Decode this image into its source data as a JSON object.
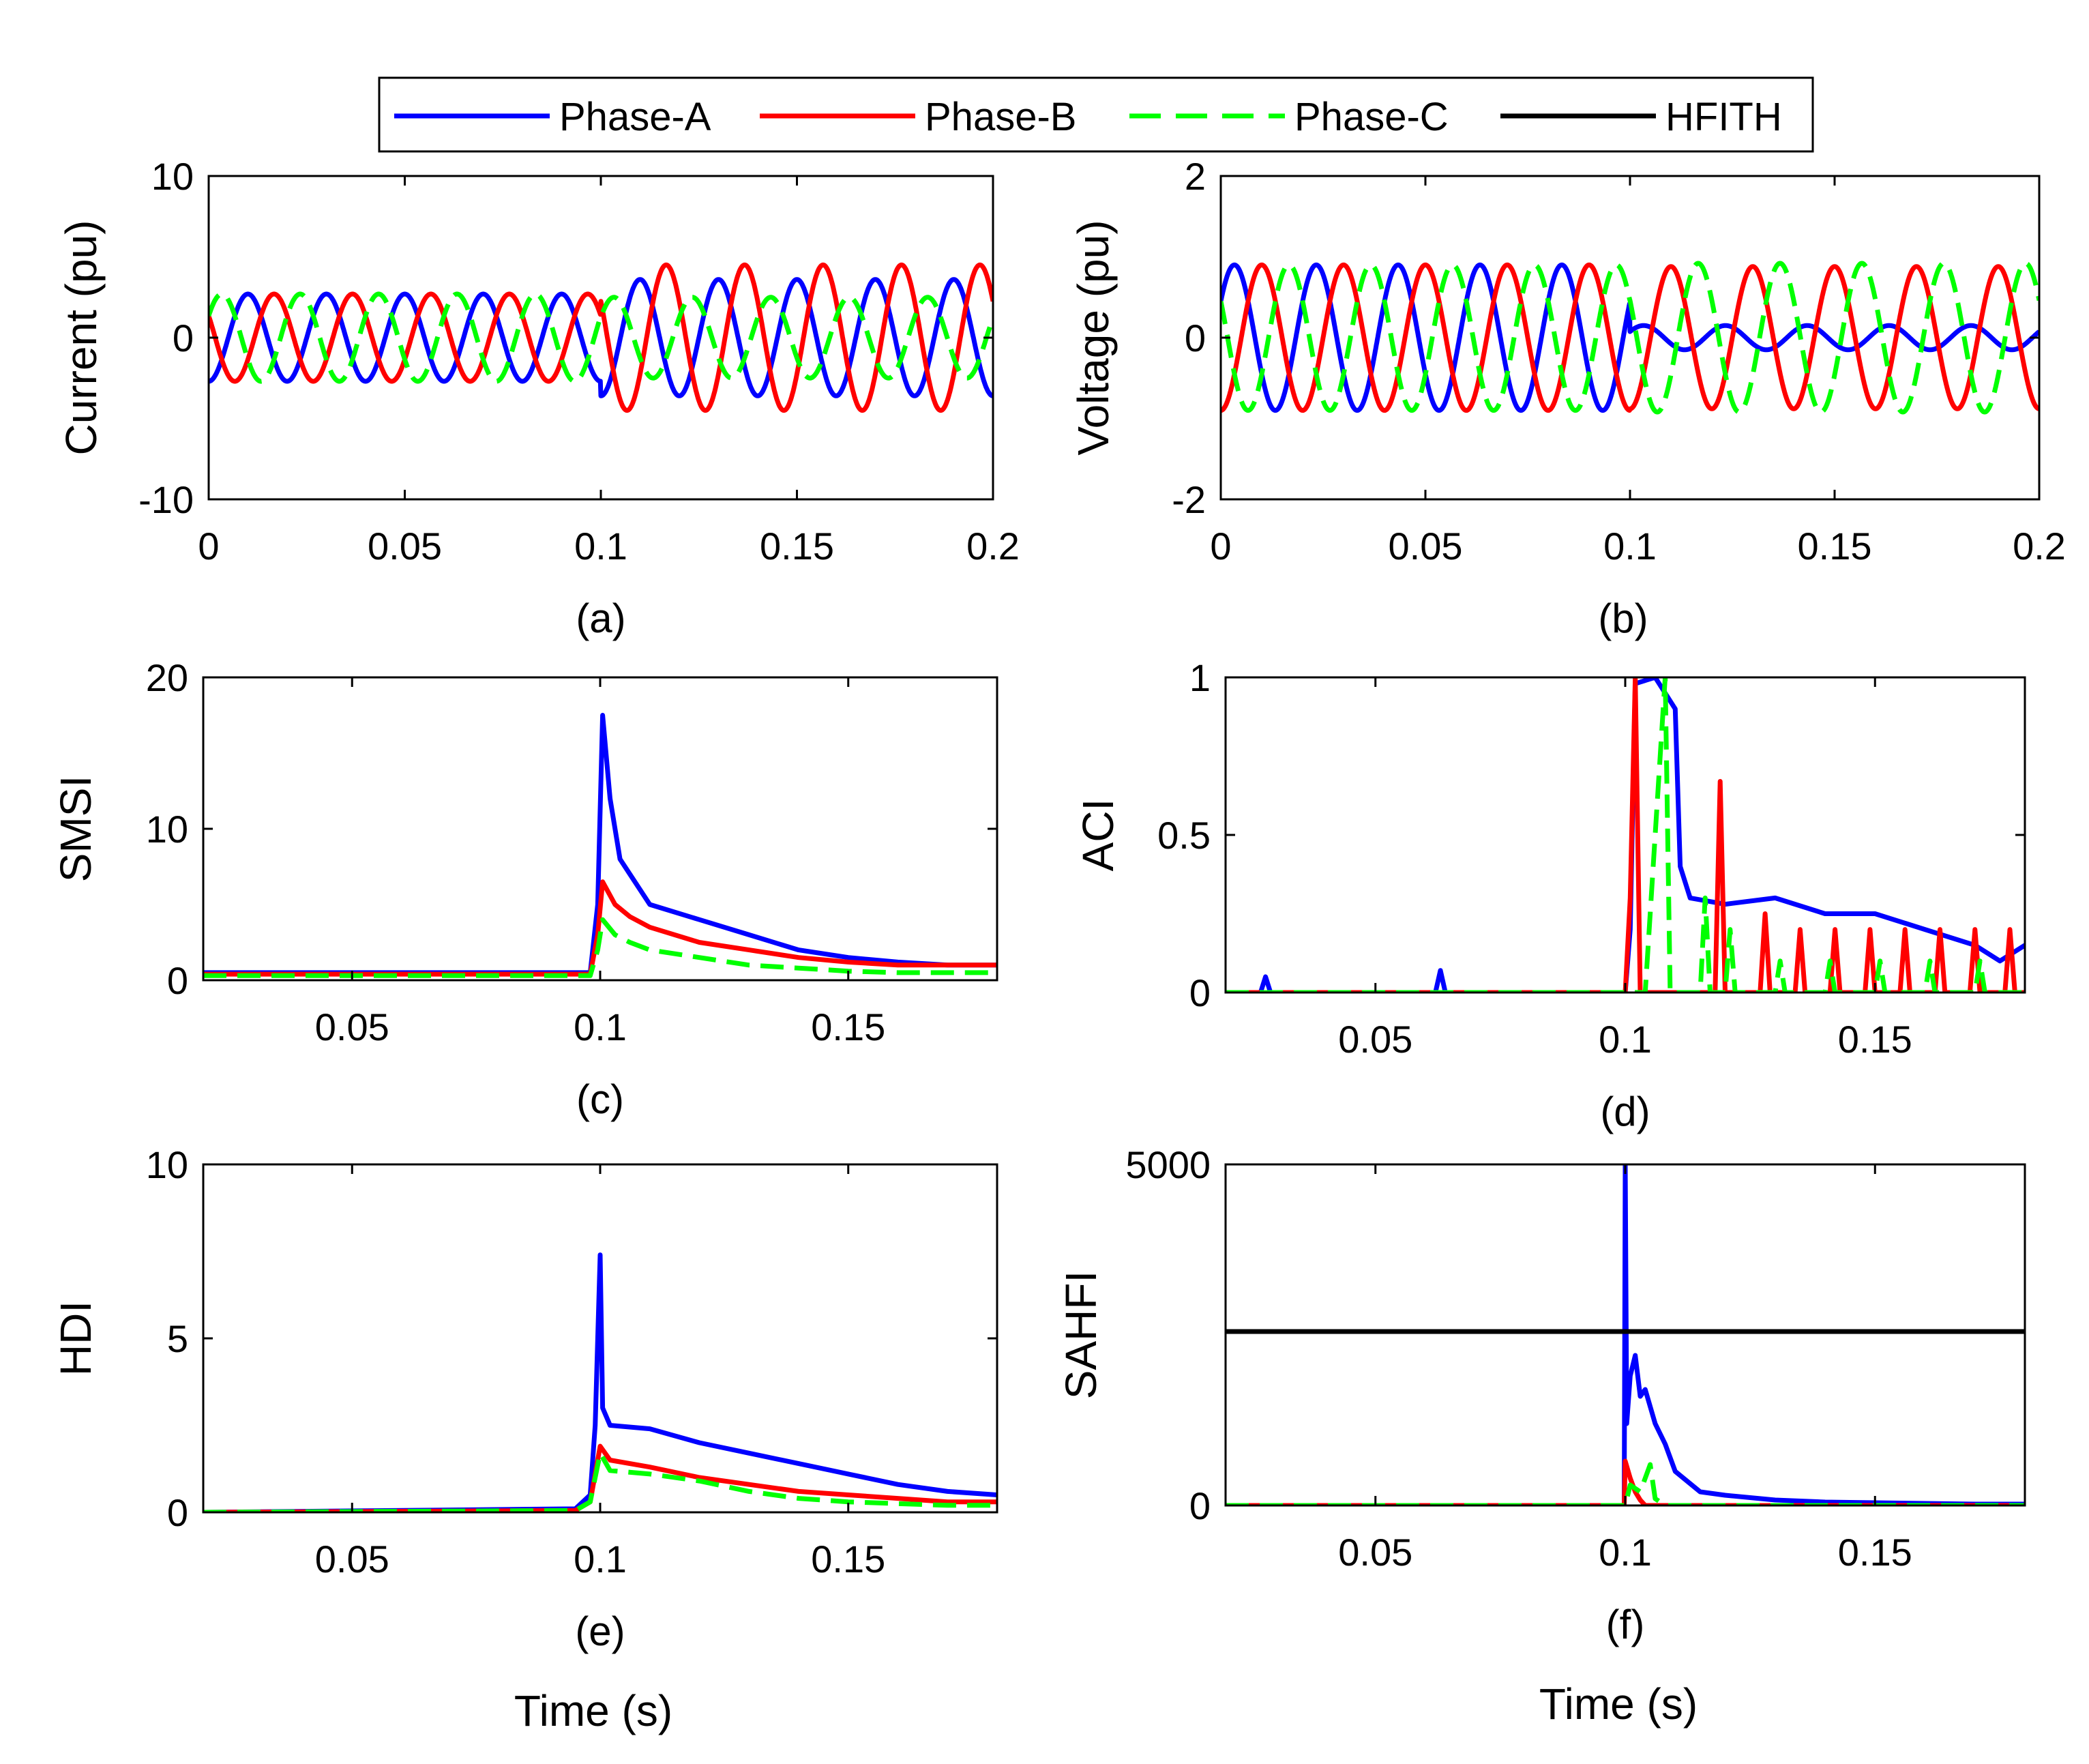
{
  "legend": {
    "entries": [
      {
        "label": "Phase-A",
        "color": "#0000ff",
        "dash": "solid"
      },
      {
        "label": "Phase-B",
        "color": "#ff0000",
        "dash": "solid"
      },
      {
        "label": "Phase-C",
        "color": "#00ff00",
        "dash": "dashed"
      },
      {
        "label": "HFITH",
        "color": "#000000",
        "dash": "solid"
      }
    ]
  },
  "chart_data": [
    {
      "id": "a",
      "type": "line",
      "caption": "(a)",
      "ylabel": "Current (pu)",
      "xlabel": "",
      "xlim": [
        0,
        0.2
      ],
      "ylim": [
        -10,
        10
      ],
      "xticks": [
        "0",
        "0.05",
        "0.1",
        "0.15",
        "0.2"
      ],
      "yticks": [
        "-10",
        "0",
        "10"
      ],
      "signal": {
        "fault_time": 0.1,
        "frequency_hz": 50,
        "series": [
          {
            "phase": "Phase-A",
            "pre_amplitude": 2.7,
            "post_amplitude": 3.6,
            "phase_deg": -90
          },
          {
            "phase": "Phase-B",
            "pre_amplitude": 2.7,
            "post_amplitude": 4.5,
            "phase_deg": 150
          },
          {
            "phase": "Phase-C",
            "pre_amplitude": 2.7,
            "post_amplitude": 2.5,
            "phase_deg": 30
          }
        ]
      }
    },
    {
      "id": "b",
      "type": "line",
      "caption": "(b)",
      "ylabel": "Voltage (pu)",
      "xlabel": "",
      "xlim": [
        0,
        0.2
      ],
      "ylim": [
        -2,
        2
      ],
      "xticks": [
        "0",
        "0.05",
        "0.1",
        "0.15",
        "0.2"
      ],
      "yticks": [
        "-2",
        "0",
        "2"
      ],
      "signal": {
        "fault_time": 0.1,
        "frequency_hz": 50,
        "series": [
          {
            "phase": "Phase-A",
            "pre_amplitude": 0.9,
            "post_amplitude": 0.15,
            "phase_deg": 30
          },
          {
            "phase": "Phase-B",
            "pre_amplitude": 0.9,
            "post_amplitude": 0.88,
            "phase_deg": -90
          },
          {
            "phase": "Phase-C",
            "pre_amplitude": 0.9,
            "post_amplitude": 0.92,
            "phase_deg": 150
          }
        ]
      }
    },
    {
      "id": "c",
      "type": "line",
      "caption": "(c)",
      "ylabel": "SMSI",
      "xlabel": "",
      "xlim": [
        0.02,
        0.18
      ],
      "ylim": [
        0,
        20
      ],
      "xticks": [
        "0.05",
        "0.1",
        "0.15"
      ],
      "yticks": [
        "0",
        "10",
        "20"
      ],
      "series": [
        {
          "phase": "Phase-A",
          "x": [
            0.02,
            0.098,
            0.0995,
            0.1005,
            0.102,
            0.104,
            0.106,
            0.11,
            0.12,
            0.13,
            0.14,
            0.15,
            0.16,
            0.17,
            0.18
          ],
          "y": [
            0.5,
            0.5,
            5,
            17.5,
            12,
            8,
            7,
            5,
            4,
            3,
            2,
            1.5,
            1.2,
            1,
            1
          ]
        },
        {
          "phase": "Phase-B",
          "x": [
            0.02,
            0.098,
            0.0995,
            0.1005,
            0.103,
            0.106,
            0.11,
            0.12,
            0.13,
            0.14,
            0.15,
            0.16,
            0.17,
            0.18
          ],
          "y": [
            0.4,
            0.4,
            3,
            6.5,
            5,
            4.2,
            3.5,
            2.5,
            2,
            1.5,
            1.2,
            1,
            1,
            1
          ]
        },
        {
          "phase": "Phase-C",
          "x": [
            0.02,
            0.098,
            0.0995,
            0.1005,
            0.103,
            0.106,
            0.11,
            0.12,
            0.13,
            0.14,
            0.15,
            0.16,
            0.17,
            0.18
          ],
          "y": [
            0.3,
            0.3,
            2,
            4,
            3,
            2.5,
            2,
            1.5,
            1,
            0.8,
            0.6,
            0.5,
            0.5,
            0.5
          ]
        }
      ]
    },
    {
      "id": "d",
      "type": "line",
      "caption": "(d)",
      "ylabel": "ACI",
      "xlabel": "",
      "xlim": [
        0.02,
        0.18
      ],
      "ylim": [
        0,
        1
      ],
      "xticks": [
        "0.05",
        "0.1",
        "0.15"
      ],
      "yticks": [
        "0",
        "0.5",
        "1"
      ],
      "series": [
        {
          "phase": "Phase-A",
          "x": [
            0.02,
            0.027,
            0.028,
            0.029,
            0.062,
            0.063,
            0.064,
            0.1,
            0.101,
            0.102,
            0.106,
            0.108,
            0.11,
            0.111,
            0.113,
            0.12,
            0.13,
            0.14,
            0.15,
            0.16,
            0.17,
            0.175,
            0.18
          ],
          "y": [
            0,
            0,
            0.05,
            0,
            0,
            0.07,
            0,
            0,
            0.2,
            0.98,
            1,
            0.95,
            0.9,
            0.4,
            0.3,
            0.28,
            0.3,
            0.25,
            0.25,
            0.2,
            0.15,
            0.1,
            0.15
          ]
        },
        {
          "phase": "Phase-B",
          "x": [
            0.02,
            0.1,
            0.101,
            0.102,
            0.103,
            0.118,
            0.119,
            0.12,
            0.127,
            0.128,
            0.129,
            0.134,
            0.135,
            0.136,
            0.141,
            0.142,
            0.143,
            0.148,
            0.149,
            0.15,
            0.155,
            0.156,
            0.157,
            0.162,
            0.163,
            0.164,
            0.169,
            0.17,
            0.171,
            0.176,
            0.177,
            0.178,
            0.18
          ],
          "y": [
            0,
            0,
            0.3,
            1,
            0,
            0,
            0.67,
            0,
            0,
            0.25,
            0,
            0,
            0.2,
            0,
            0,
            0.2,
            0,
            0,
            0.2,
            0,
            0,
            0.2,
            0,
            0,
            0.2,
            0,
            0,
            0.2,
            0,
            0,
            0.2,
            0,
            0
          ]
        },
        {
          "phase": "Phase-C",
          "x": [
            0.02,
            0.104,
            0.106,
            0.108,
            0.109,
            0.115,
            0.116,
            0.117,
            0.12,
            0.121,
            0.122,
            0.13,
            0.131,
            0.132,
            0.14,
            0.141,
            0.142,
            0.15,
            0.151,
            0.152,
            0.16,
            0.161,
            0.162,
            0.17,
            0.171,
            0.172,
            0.18
          ],
          "y": [
            0,
            0,
            0.5,
            1,
            0,
            0,
            0.3,
            0,
            0,
            0.2,
            0,
            0,
            0.1,
            0,
            0,
            0.1,
            0,
            0,
            0.1,
            0,
            0,
            0.1,
            0,
            0,
            0.1,
            0,
            0
          ]
        }
      ]
    },
    {
      "id": "e",
      "type": "line",
      "caption": "(e)",
      "ylabel": "HDI",
      "xlabel": "Time (s)",
      "xlim": [
        0.02,
        0.18
      ],
      "ylim": [
        0,
        10
      ],
      "xticks": [
        "0.05",
        "0.1",
        "0.15"
      ],
      "yticks": [
        "0",
        "5",
        "10"
      ],
      "series": [
        {
          "phase": "Phase-A",
          "x": [
            0.02,
            0.095,
            0.098,
            0.099,
            0.1,
            0.1005,
            0.102,
            0.11,
            0.12,
            0.13,
            0.14,
            0.15,
            0.16,
            0.17,
            0.18
          ],
          "y": [
            0,
            0.1,
            0.5,
            2.5,
            7.4,
            3,
            2.5,
            2.4,
            2,
            1.7,
            1.4,
            1.1,
            0.8,
            0.6,
            0.5
          ]
        },
        {
          "phase": "Phase-B",
          "x": [
            0.02,
            0.095,
            0.098,
            0.1,
            0.102,
            0.11,
            0.12,
            0.13,
            0.14,
            0.15,
            0.16,
            0.17,
            0.18
          ],
          "y": [
            0,
            0.05,
            0.3,
            1.9,
            1.5,
            1.3,
            1.0,
            0.8,
            0.6,
            0.5,
            0.4,
            0.3,
            0.3
          ]
        },
        {
          "phase": "Phase-C",
          "x": [
            0.02,
            0.095,
            0.098,
            0.1,
            0.102,
            0.11,
            0.12,
            0.13,
            0.14,
            0.15,
            0.16,
            0.17,
            0.18
          ],
          "y": [
            0,
            0.05,
            0.3,
            1.7,
            1.2,
            1.1,
            0.9,
            0.6,
            0.4,
            0.3,
            0.25,
            0.2,
            0.2
          ]
        }
      ]
    },
    {
      "id": "f",
      "type": "line",
      "caption": "(f)",
      "ylabel": "SAHFI",
      "xlabel": "Time (s)",
      "xlim": [
        0.02,
        0.18
      ],
      "ylim": [
        0,
        5000
      ],
      "xticks": [
        "0.05",
        "0.1",
        "0.15"
      ],
      "yticks": [
        "0",
        "5000"
      ],
      "series": [
        {
          "phase": "Phase-A",
          "x": [
            0.02,
            0.0998,
            0.1,
            0.1003,
            0.101,
            0.102,
            0.103,
            0.104,
            0.106,
            0.108,
            0.11,
            0.115,
            0.12,
            0.13,
            0.14,
            0.15,
            0.16,
            0.17,
            0.18
          ],
          "y": [
            0,
            0,
            5000,
            1200,
            1900,
            2200,
            1600,
            1700,
            1200,
            900,
            500,
            200,
            150,
            80,
            50,
            40,
            30,
            20,
            20
          ]
        },
        {
          "phase": "Phase-B",
          "x": [
            0.02,
            0.0998,
            0.1,
            0.101,
            0.102,
            0.103,
            0.104,
            0.18
          ],
          "y": [
            0,
            0,
            650,
            400,
            200,
            80,
            0,
            0
          ]
        },
        {
          "phase": "Phase-C",
          "x": [
            0.02,
            0.1,
            0.101,
            0.103,
            0.105,
            0.106,
            0.108,
            0.18
          ],
          "y": [
            0,
            0,
            300,
            200,
            600,
            100,
            0,
            0
          ]
        },
        {
          "phase": "HFITH",
          "x": [
            0.02,
            0.18
          ],
          "y": [
            2550,
            2550
          ]
        }
      ]
    }
  ]
}
